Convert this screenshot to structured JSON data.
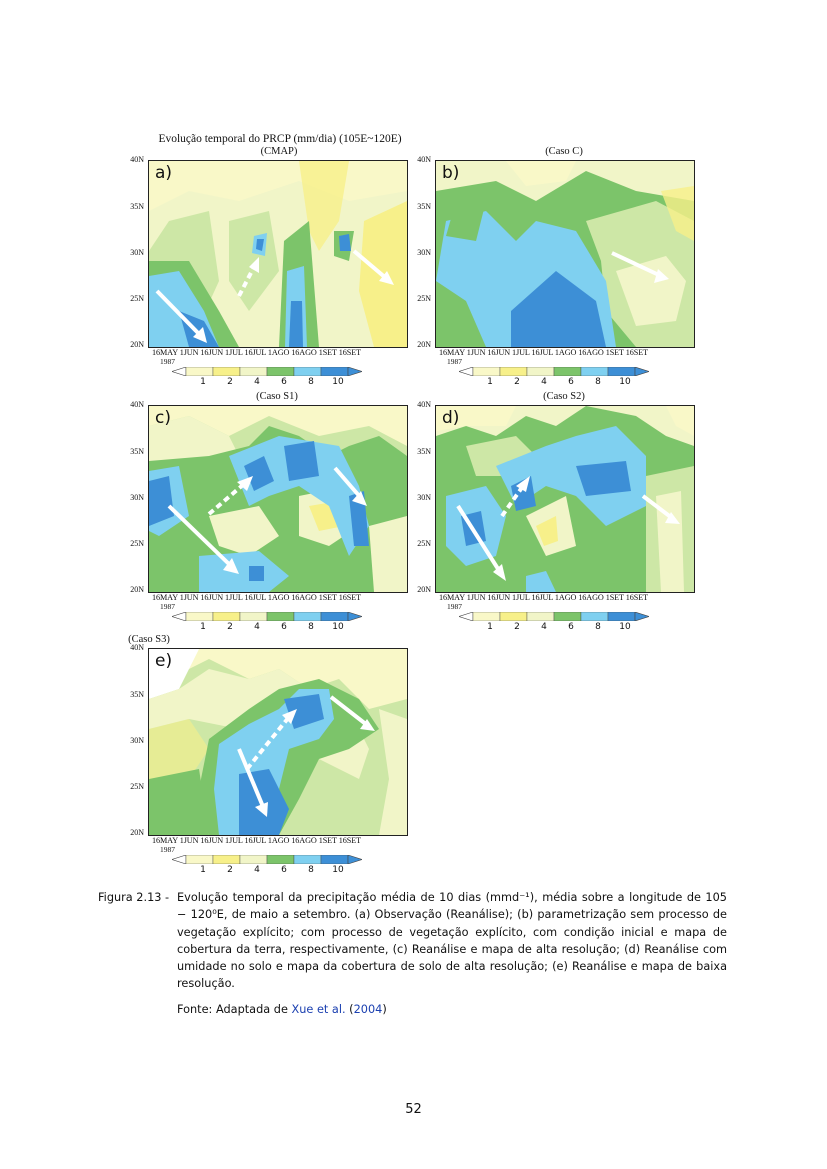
{
  "figure": {
    "title_line1": "Evolução temporal do PRCP (mm/dia) (105E~120E)",
    "colors": {
      "lt1": "#ffffff",
      "c1": "#f9f8c8",
      "c2": "#f7f08a",
      "c4": "#f1f5c8",
      "c6": "#cde7a6",
      "c8": "#7cc46a",
      "c10": "#7fd0f0",
      "c12": "#3d8fd6"
    },
    "y_ticks": [
      "40N",
      "35N",
      "30N",
      "25N",
      "20N"
    ],
    "x_ticks": [
      "16MAY",
      "1JUN",
      "16JUN",
      "1JUL",
      "16JUL",
      "1AGO",
      "16AGO",
      "1SET",
      "16SET"
    ],
    "year": "1987",
    "colorbar_labels": [
      "1",
      "2",
      "4",
      "6",
      "8",
      "10"
    ],
    "panels": [
      {
        "title": "(CMAP)",
        "letter": "a)"
      },
      {
        "title": "(Caso C)",
        "letter": "b)"
      },
      {
        "title": "(Caso S1)",
        "letter": "c)"
      },
      {
        "title": "(Caso S2)",
        "letter": "d)"
      },
      {
        "title": "(Caso S3)",
        "letter": "e)"
      }
    ]
  },
  "caption": {
    "label": "Figura 2.13 -",
    "text": "Evolução temporal da precipitação média de 10 dias (mmd⁻¹), média sobre a longitude de 105 − 120⁰E, de maio a setembro. (a) Observação (Reanálise); (b) parametrização sem processo de vegetação explícito; com processo de vegetação explícito, com condição inicial e mapa de cobertura da terra, respectivamente, (c) Reanálise e mapa de alta resolução; (d) Reanálise com umidade no solo e mapa da cobertura de solo de alta resolução; (e) Reanálise e mapa de baixa resolução."
  },
  "source": {
    "prefix": "Fonte: Adaptada de",
    "ref": "Xue et al.",
    "open": "(",
    "year": "2004",
    "close": ")"
  },
  "page_number": "52"
}
